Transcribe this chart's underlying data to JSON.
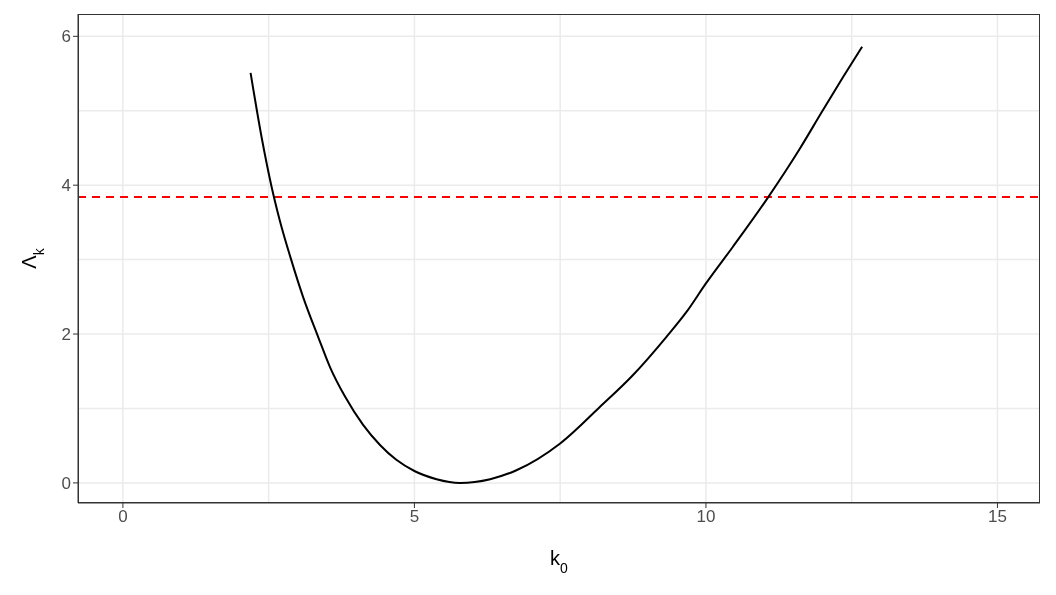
{
  "chart_data": {
    "type": "line",
    "xlabel": "k$_{0}$",
    "ylabel": "Λ$_{k}$",
    "x": [
      2.19,
      2.38,
      2.55,
      2.69,
      2.89,
      3.09,
      3.35,
      3.55,
      3.81,
      4.12,
      4.41,
      4.69,
      5.0,
      5.38,
      5.78,
      6.3,
      6.75,
      7.5,
      8.18,
      8.75,
      9.32,
      9.67,
      10.0,
      10.46,
      11.06,
      11.61,
      12.0,
      12.35,
      12.68
    ],
    "series": [
      {
        "color": "#000000",
        "values": [
          5.51,
          4.64,
          3.98,
          3.53,
          2.99,
          2.5,
          1.96,
          1.56,
          1.16,
          0.78,
          0.51,
          0.31,
          0.16,
          0.05,
          0,
          0.05,
          0.17,
          0.53,
          1.02,
          1.45,
          1.96,
          2.3,
          2.68,
          3.17,
          3.83,
          4.49,
          5.0,
          5.45,
          5.86
        ]
      }
    ],
    "xlim": [
      -0.77,
      15.73
    ],
    "ylim": [
      -0.27,
      6.3
    ],
    "xticks": [
      0,
      5,
      10,
      15
    ],
    "yticks": [
      0,
      2,
      4,
      6
    ],
    "ref_lines": [
      {
        "axis": "y",
        "value": 3.84,
        "color": "#ff0000",
        "line_style": "dashed"
      }
    ],
    "grid": true,
    "marker": "none",
    "line_style": "solid"
  }
}
